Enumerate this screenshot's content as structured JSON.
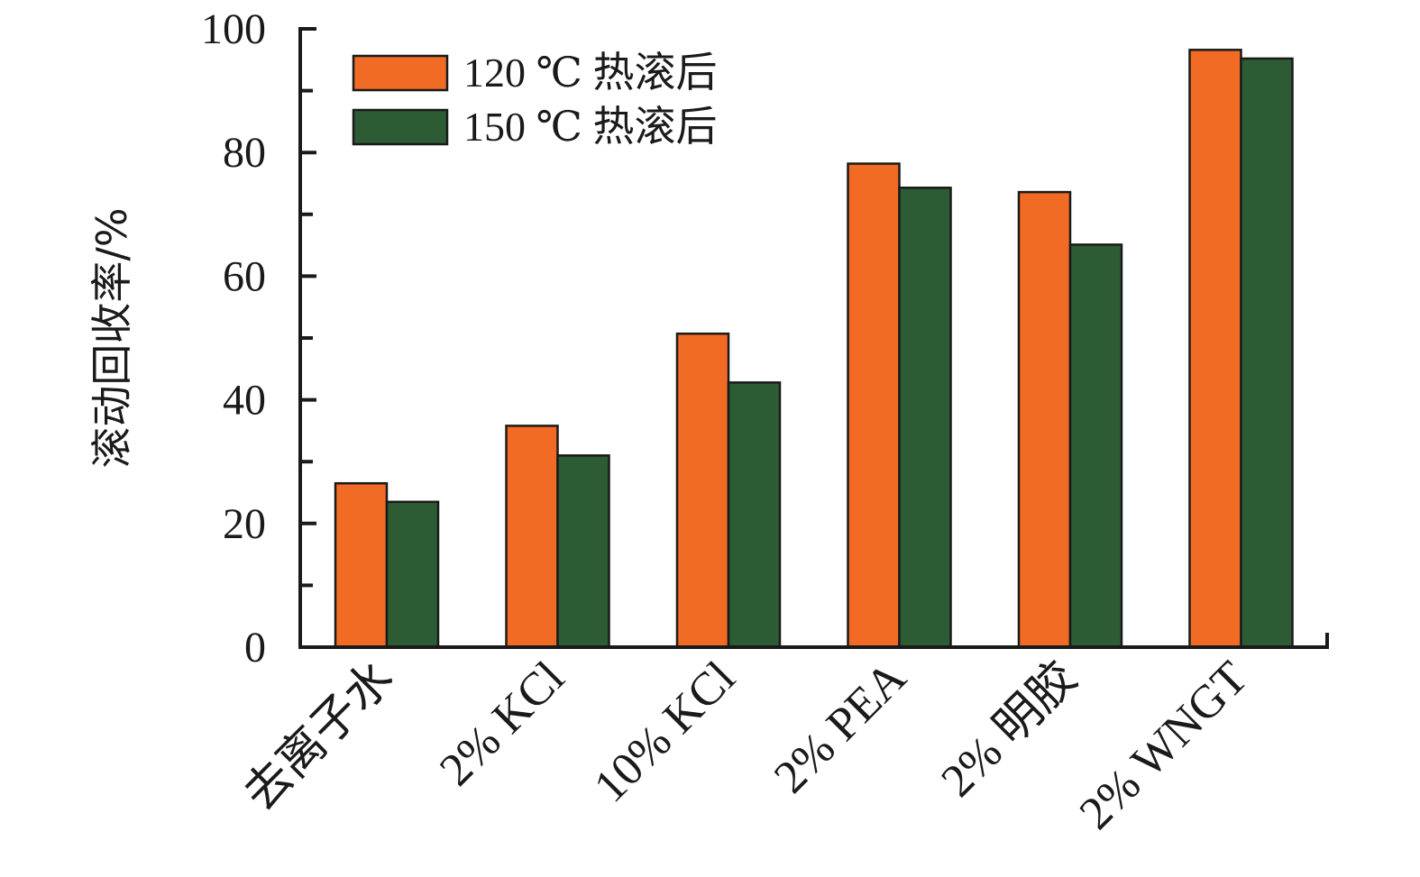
{
  "chart_data": {
    "type": "bar",
    "categories": [
      "去离子水",
      "2% KCl",
      "10% KCl",
      "2% PEA",
      "2% 明胶",
      "2% WNGT"
    ],
    "series": [
      {
        "name": "120 ℃ 热滚后",
        "color": "#f26b25",
        "values": [
          26.5,
          35.8,
          50.7,
          78.2,
          73.6,
          96.6
        ]
      },
      {
        "name": "150 ℃ 热滚后",
        "color": "#2d5b33",
        "values": [
          23.5,
          31.0,
          42.8,
          74.3,
          65.1,
          95.2
        ]
      }
    ],
    "xlabel": "",
    "ylabel": "滚动回收率/%",
    "ylim": [
      0,
      100
    ],
    "yticks": [
      0,
      20,
      40,
      60,
      80,
      100
    ],
    "grid": false,
    "legend_position": "top-left"
  }
}
